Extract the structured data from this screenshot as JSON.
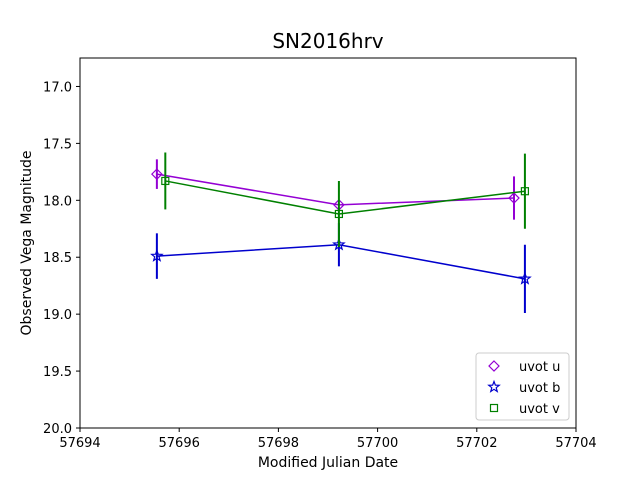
{
  "chart_data": {
    "type": "scatter",
    "title": "SN2016hrv",
    "xlabel": "Modified Julian Date",
    "ylabel": "Observed Vega Magnitude",
    "xlim": [
      57694,
      57704
    ],
    "ylim": [
      20.0,
      16.75
    ],
    "y_inverted": true,
    "grid": false,
    "legend_position": "lower-right",
    "xticks": [
      57694,
      57696,
      57698,
      57700,
      57702,
      57704
    ],
    "yticks": [
      17.0,
      17.5,
      18.0,
      18.5,
      19.0,
      19.5,
      20.0
    ],
    "xtick_labels": [
      "57694",
      "57696",
      "57698",
      "57700",
      "57702",
      "57704"
    ],
    "ytick_labels": [
      "17.0",
      "17.5",
      "18.0",
      "18.5",
      "19.0",
      "19.5",
      "20.0"
    ],
    "series": [
      {
        "name": "uvot u",
        "color": "#9400d3",
        "marker": "diamond",
        "x": [
          57695.55,
          57699.22,
          57702.75
        ],
        "y": [
          17.77,
          18.04,
          17.98
        ],
        "err": [
          0.13,
          0.0,
          0.19
        ]
      },
      {
        "name": "uvot b",
        "color": "#0000cd",
        "marker": "star",
        "x": [
          57695.55,
          57699.22,
          57702.97
        ],
        "y": [
          18.49,
          18.39,
          18.69
        ],
        "err": [
          0.2,
          0.19,
          0.3
        ]
      },
      {
        "name": "uvot v",
        "color": "#008000",
        "marker": "square",
        "x": [
          57695.72,
          57699.22,
          57702.97
        ],
        "y": [
          17.83,
          18.12,
          17.92
        ],
        "err": [
          0.25,
          0.29,
          0.33
        ]
      }
    ]
  }
}
